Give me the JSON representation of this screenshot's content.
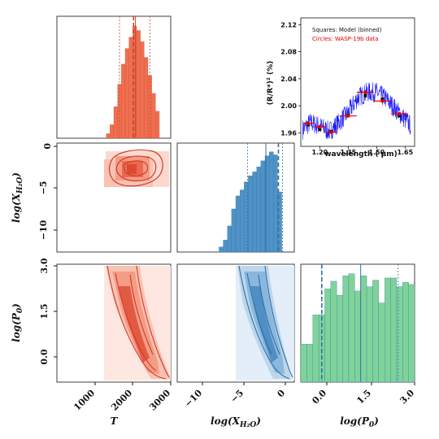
{
  "colors": {
    "t": "#ef6f4f",
    "xh2o": "#4f93c6",
    "p0": "#7fd39a",
    "spectrum": "#1a1aff",
    "data": "#e00000"
  },
  "labels": {
    "x_bottom": [
      "T",
      "log(X_H2O)",
      "log(P0)"
    ],
    "y_left": [
      "log(X_H2O)",
      "log(P0)"
    ]
  },
  "ticks": {
    "t_x": [
      "1000",
      "2000",
      "3000"
    ],
    "xh2o_x": [
      "−10",
      "−5",
      "0"
    ],
    "p0_x": [
      "0.0",
      "1.5",
      "3.0"
    ],
    "xh2o_y": [
      "0",
      "−5",
      "−10"
    ],
    "p0_y": [
      "3.0",
      "1.5",
      "0.0"
    ]
  },
  "inset": {
    "ylabel": "(R/R*)² (%)",
    "xlabel": "wavelength ( μm)",
    "legend_model": "Squares: Model (binned)",
    "legend_data": "Circles: WASP-19b data",
    "xticks": [
      "1.20",
      "1.35",
      "1.50",
      "1.65"
    ],
    "yticks": [
      "2.12",
      "2.08",
      "2.04",
      "2.00",
      "1.96"
    ]
  },
  "chart_data": [
    {
      "type": "bar",
      "title": "",
      "xlabel": "T",
      "xlim": [
        0,
        3000
      ],
      "bin_edges": [
        1300,
        1400,
        1500,
        1600,
        1700,
        1800,
        1900,
        2000,
        2100,
        2200,
        2300,
        2400,
        2500,
        2600,
        2700
      ],
      "values": [
        0.04,
        0.12,
        0.28,
        0.48,
        0.66,
        0.8,
        0.9,
        1.0,
        0.96,
        0.86,
        0.72,
        0.56,
        0.4,
        0.24
      ],
      "quantiles": {
        "low": 1650,
        "median": 2070,
        "high": 2450
      },
      "median_marker": 2020
    },
    {
      "type": "bar",
      "xlabel": "log(X_H2O)",
      "xlim": [
        -13,
        1
      ],
      "bin_edges": [
        -8,
        -7.5,
        -7,
        -6.5,
        -6,
        -5.5,
        -5,
        -4.5,
        -4,
        -3.5,
        -3,
        -2.5,
        -2,
        -1.5,
        -1,
        -0.5
      ],
      "values": [
        0.05,
        0.12,
        0.26,
        0.43,
        0.56,
        0.62,
        0.7,
        0.76,
        0.8,
        0.85,
        0.91,
        0.96,
        1.0,
        0.97,
        0.6
      ],
      "quantiles": {
        "low": -4.6,
        "median": -2.4,
        "high": -0.4
      },
      "median_marker": -0.9
    },
    {
      "type": "bar",
      "xlabel": "log(P0)",
      "xlim": [
        -0.8,
        3.0
      ],
      "bin_edges": [
        -0.8,
        -0.6,
        -0.4,
        -0.2,
        0.0,
        0.2,
        0.4,
        0.6,
        0.8,
        1.0,
        1.2,
        1.4,
        1.6,
        1.8,
        2.0,
        2.2,
        2.4,
        2.6,
        2.8,
        3.0
      ],
      "values": [
        0.35,
        0.35,
        0.62,
        0.62,
        0.86,
        0.93,
        0.8,
        0.98,
        1.0,
        0.84,
        0.98,
        0.88,
        0.94,
        0.73,
        0.96,
        0.96,
        0.88,
        0.92,
        0.9
      ],
      "quantiles": {
        "low": -0.1,
        "median": 1.2,
        "high": 2.45
      },
      "median_marker": -0.1
    },
    {
      "type": "heatmap",
      "xlabel": "T",
      "ylabel": "log(X_H2O)",
      "xlim": [
        0,
        3000
      ],
      "ylim": [
        -13,
        0
      ],
      "peak": [
        2000,
        -2.8
      ]
    },
    {
      "type": "heatmap",
      "xlabel": "T",
      "ylabel": "log(P0)",
      "xlim": [
        0,
        3000
      ],
      "ylim": [
        -0.8,
        3.0
      ],
      "ridge": [
        [
          1700,
          3.0
        ],
        [
          1900,
          1.5
        ],
        [
          2200,
          0.2
        ],
        [
          2500,
          -0.6
        ]
      ]
    },
    {
      "type": "heatmap",
      "xlabel": "log(X_H2O)",
      "ylabel": "log(P0)",
      "xlim": [
        -13,
        1
      ],
      "ylim": [
        -0.8,
        3.0
      ],
      "ridge": [
        [
          -4.5,
          3.0
        ],
        [
          -3.0,
          1.5
        ],
        [
          -1.5,
          0.2
        ],
        [
          -0.5,
          -0.6
        ]
      ]
    },
    {
      "type": "line",
      "title": "",
      "xlabel": "wavelength ( μm)",
      "ylabel": "(R/R*)² (%)",
      "xlim": [
        1.1,
        1.7
      ],
      "ylim": [
        1.94,
        2.13
      ],
      "series": [
        {
          "name": "Squares: Model (binned)",
          "x": [
            1.14,
            1.2,
            1.26,
            1.35,
            1.44,
            1.53,
            1.62
          ],
          "y": [
            1.972,
            1.965,
            1.962,
            1.986,
            2.015,
            2.01,
            1.985
          ]
        },
        {
          "name": "Circles: WASP-19b data",
          "x": [
            1.14,
            1.2,
            1.26,
            1.35,
            1.44,
            1.53,
            1.62
          ],
          "y": [
            1.974,
            1.969,
            1.961,
            1.985,
            2.02,
            2.007,
            1.988
          ],
          "xerr": [
            0.03,
            0.03,
            0.03,
            0.045,
            0.045,
            0.045,
            0.045
          ]
        }
      ],
      "spectrum_trend": {
        "x": [
          1.11,
          1.15,
          1.2,
          1.25,
          1.3,
          1.35,
          1.4,
          1.45,
          1.5,
          1.55,
          1.6,
          1.65,
          1.68
        ],
        "y": [
          1.965,
          1.975,
          1.97,
          1.962,
          1.975,
          1.99,
          2.012,
          2.02,
          2.02,
          2.01,
          1.995,
          1.98,
          1.97
        ]
      }
    }
  ]
}
